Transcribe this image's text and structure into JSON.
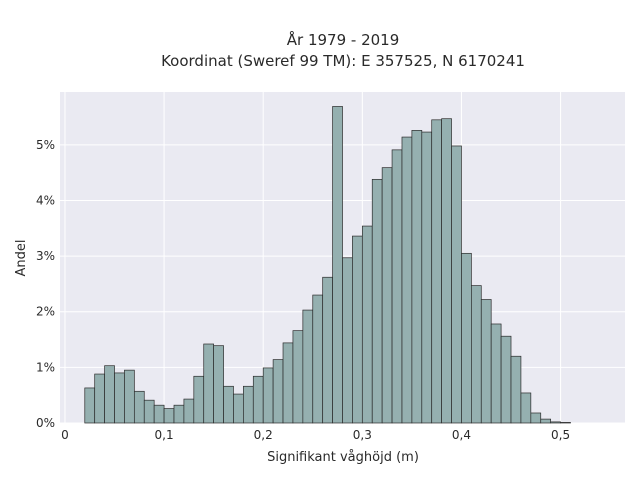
{
  "title": {
    "line1": "År 1979 - 2019",
    "line2": "Koordinat (Sweref 99 TM): E 357525, N 6170241"
  },
  "chart_data": {
    "type": "bar",
    "subtype": "histogram",
    "xlabel": "Signifikant våghöjd (m)",
    "ylabel": "Andel",
    "xlim": [
      -0.005,
      0.565
    ],
    "ylim": [
      0,
      5.95
    ],
    "grid": true,
    "background_color": "#eaeaf2",
    "bar_color": "#95b0b0",
    "bin_width": 0.01,
    "x_ticks": [
      {
        "value": 0,
        "label": "0"
      },
      {
        "value": 0.1,
        "label": "0,1"
      },
      {
        "value": 0.2,
        "label": "0,2"
      },
      {
        "value": 0.3,
        "label": "0,3"
      },
      {
        "value": 0.4,
        "label": "0,4"
      },
      {
        "value": 0.5,
        "label": "0,5"
      }
    ],
    "y_ticks": [
      {
        "value": 0,
        "label": "0%"
      },
      {
        "value": 1,
        "label": "1%"
      },
      {
        "value": 2,
        "label": "2%"
      },
      {
        "value": 3,
        "label": "3%"
      },
      {
        "value": 4,
        "label": "4%"
      },
      {
        "value": 5,
        "label": "5%"
      }
    ],
    "bins_start": [
      0.02,
      0.03,
      0.04,
      0.05,
      0.06,
      0.07,
      0.08,
      0.09,
      0.1,
      0.11,
      0.12,
      0.13,
      0.14,
      0.15,
      0.16,
      0.17,
      0.18,
      0.19,
      0.2,
      0.21,
      0.22,
      0.23,
      0.24,
      0.25,
      0.26,
      0.27,
      0.28,
      0.29,
      0.3,
      0.31,
      0.32,
      0.33,
      0.34,
      0.35,
      0.36,
      0.37,
      0.38,
      0.39,
      0.4,
      0.41,
      0.42,
      0.43,
      0.44,
      0.45,
      0.46,
      0.47,
      0.48,
      0.49,
      0.5,
      0.51,
      0.52,
      0.53
    ],
    "values": [
      0.63,
      0.88,
      1.03,
      0.9,
      0.95,
      0.57,
      0.41,
      0.32,
      0.26,
      0.32,
      0.43,
      0.84,
      1.42,
      1.39,
      0.66,
      0.52,
      0.66,
      0.84,
      0.99,
      1.14,
      1.44,
      1.66,
      2.03,
      2.3,
      2.62,
      5.69,
      2.97,
      3.36,
      3.54,
      4.38,
      4.59,
      4.91,
      5.14,
      5.26,
      5.23,
      5.45,
      5.47,
      4.98,
      3.05,
      2.47,
      2.22,
      1.78,
      1.56,
      1.2,
      0.54,
      0.18,
      0.07,
      0.02,
      0.01,
      0.0,
      0.0,
      0.0
    ]
  }
}
